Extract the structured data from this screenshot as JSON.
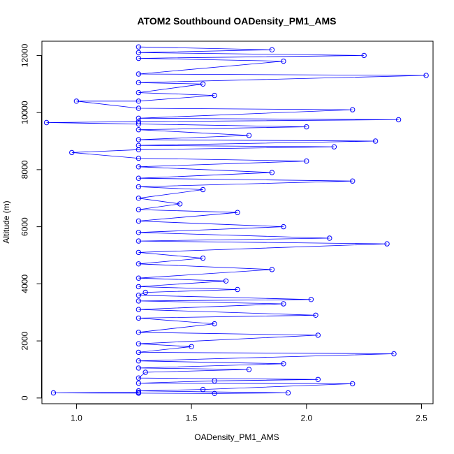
{
  "chart_data": {
    "type": "line",
    "title": "ATOM2 Southbound OADensity_PM1_AMS",
    "xlabel": "OADensity_PM1_AMS",
    "ylabel": "Altitude (m)",
    "xlim": [
      0.85,
      2.55
    ],
    "ylim": [
      -200,
      12500
    ],
    "xticks": [
      "1.0",
      "1.5",
      "2.0",
      "2.5"
    ],
    "yticks": [
      "0",
      "2000",
      "4000",
      "6000",
      "8000",
      "10000",
      "12000"
    ],
    "xtick_values": [
      1.0,
      1.5,
      2.0,
      2.5
    ],
    "ytick_values": [
      0,
      2000,
      4000,
      6000,
      8000,
      10000,
      12000
    ],
    "grid": false,
    "marker": "open-circle",
    "color": "#0000ff",
    "series": [
      {
        "values": [
          [
            1.27,
            200
          ],
          [
            0.9,
            180
          ],
          [
            1.27,
            170
          ],
          [
            1.6,
            160
          ],
          [
            1.92,
            180
          ],
          [
            1.27,
            250
          ],
          [
            1.55,
            300
          ],
          [
            2.2,
            500
          ],
          [
            1.27,
            520
          ],
          [
            1.6,
            600
          ],
          [
            2.05,
            650
          ],
          [
            1.27,
            700
          ],
          [
            1.3,
            900
          ],
          [
            1.75,
            1000
          ],
          [
            1.27,
            1050
          ],
          [
            1.9,
            1200
          ],
          [
            1.27,
            1300
          ],
          [
            2.38,
            1550
          ],
          [
            1.27,
            1600
          ],
          [
            1.5,
            1800
          ],
          [
            1.27,
            1900
          ],
          [
            2.05,
            2200
          ],
          [
            1.27,
            2300
          ],
          [
            1.6,
            2600
          ],
          [
            1.27,
            2800
          ],
          [
            2.04,
            2900
          ],
          [
            1.27,
            3100
          ],
          [
            1.9,
            3300
          ],
          [
            1.27,
            3400
          ],
          [
            2.02,
            3450
          ],
          [
            1.27,
            3600
          ],
          [
            1.3,
            3700
          ],
          [
            1.7,
            3800
          ],
          [
            1.27,
            3900
          ],
          [
            1.65,
            4100
          ],
          [
            1.27,
            4200
          ],
          [
            1.85,
            4500
          ],
          [
            1.27,
            4700
          ],
          [
            1.55,
            4900
          ],
          [
            1.27,
            5100
          ],
          [
            2.35,
            5400
          ],
          [
            1.27,
            5500
          ],
          [
            2.1,
            5600
          ],
          [
            1.27,
            5800
          ],
          [
            1.9,
            6000
          ],
          [
            1.27,
            6200
          ],
          [
            1.7,
            6500
          ],
          [
            1.27,
            6600
          ],
          [
            1.45,
            6800
          ],
          [
            1.27,
            7000
          ],
          [
            1.55,
            7300
          ],
          [
            1.27,
            7400
          ],
          [
            2.2,
            7600
          ],
          [
            1.27,
            7700
          ],
          [
            1.85,
            7900
          ],
          [
            1.27,
            8100
          ],
          [
            2.0,
            8300
          ],
          [
            1.27,
            8400
          ],
          [
            0.98,
            8600
          ],
          [
            1.27,
            8700
          ],
          [
            2.12,
            8800
          ],
          [
            1.27,
            8850
          ],
          [
            2.3,
            9000
          ],
          [
            1.27,
            9050
          ],
          [
            1.75,
            9200
          ],
          [
            1.27,
            9400
          ],
          [
            2.0,
            9500
          ],
          [
            1.27,
            9600
          ],
          [
            0.87,
            9650
          ],
          [
            1.27,
            9680
          ],
          [
            2.4,
            9750
          ],
          [
            1.27,
            9800
          ],
          [
            2.2,
            10100
          ],
          [
            1.27,
            10150
          ],
          [
            1.0,
            10400
          ],
          [
            1.27,
            10400
          ],
          [
            1.6,
            10600
          ],
          [
            1.27,
            10700
          ],
          [
            1.55,
            11000
          ],
          [
            1.27,
            11050
          ],
          [
            2.52,
            11300
          ],
          [
            1.27,
            11350
          ],
          [
            1.9,
            11800
          ],
          [
            1.27,
            11900
          ],
          [
            2.25,
            12000
          ],
          [
            1.27,
            12100
          ],
          [
            1.85,
            12200
          ],
          [
            1.27,
            12300
          ]
        ]
      }
    ]
  }
}
